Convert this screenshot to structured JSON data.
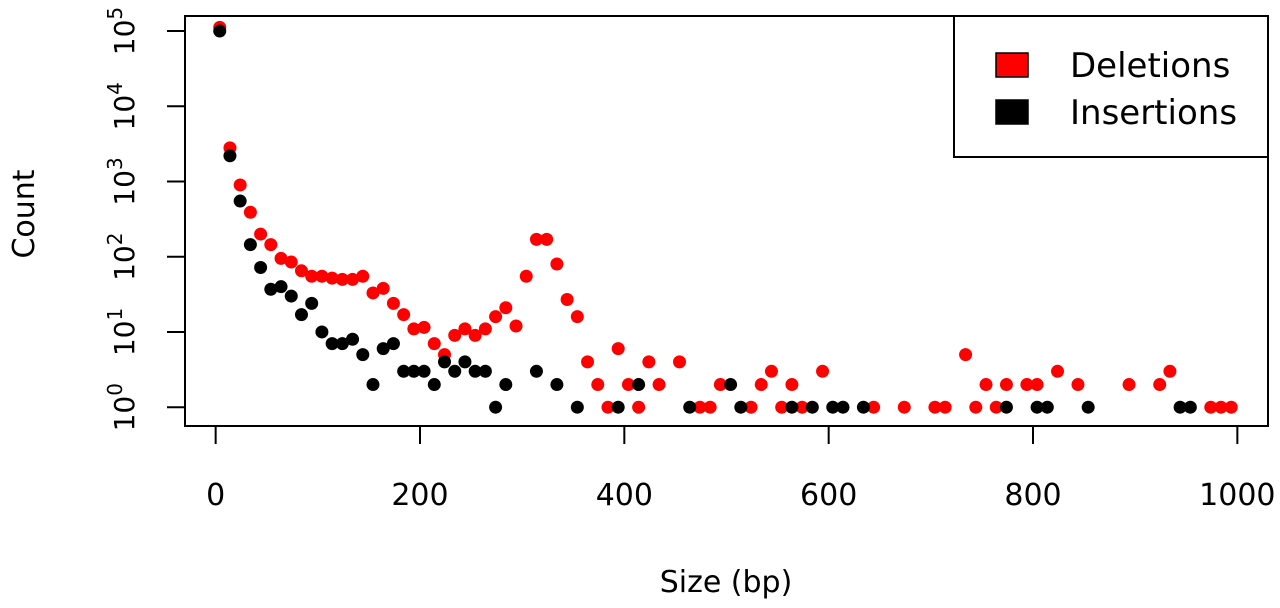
{
  "chart_data": {
    "type": "scatter",
    "title": "",
    "xlabel": "Size (bp)",
    "ylabel": "Count",
    "xlim": [
      -30,
      1030
    ],
    "ylim_log10": [
      -0.25,
      5.2
    ],
    "y_scale": "log10",
    "grid": false,
    "legend": {
      "position": "top-right"
    },
    "x_ticks": [
      0,
      200,
      400,
      600,
      800,
      1000
    ],
    "x_tick_labels": [
      "0",
      "200",
      "400",
      "600",
      "800",
      "1000"
    ],
    "y_ticks": [
      {
        "value": 1,
        "base": "10",
        "exp": "0"
      },
      {
        "value": 10,
        "base": "10",
        "exp": "1"
      },
      {
        "value": 100,
        "base": "10",
        "exp": "2"
      },
      {
        "value": 1000,
        "base": "10",
        "exp": "3"
      },
      {
        "value": 10000,
        "base": "10",
        "exp": "4"
      },
      {
        "value": 100000,
        "base": "10",
        "exp": "5"
      }
    ],
    "series": [
      {
        "name": "Deletions",
        "color": "#ff0000",
        "points": [
          [
            4,
            112000
          ],
          [
            14,
            2800
          ],
          [
            24,
            900
          ],
          [
            34,
            390
          ],
          [
            44,
            200
          ],
          [
            54,
            145
          ],
          [
            64,
            95
          ],
          [
            74,
            85
          ],
          [
            84,
            65
          ],
          [
            94,
            55
          ],
          [
            104,
            55
          ],
          [
            114,
            52
          ],
          [
            124,
            50
          ],
          [
            134,
            50
          ],
          [
            144,
            55
          ],
          [
            154,
            33
          ],
          [
            164,
            38
          ],
          [
            174,
            24
          ],
          [
            184,
            17
          ],
          [
            194,
            11
          ],
          [
            204,
            11.5
          ],
          [
            214,
            7
          ],
          [
            224,
            5
          ],
          [
            234,
            9
          ],
          [
            244,
            11
          ],
          [
            254,
            9
          ],
          [
            264,
            11
          ],
          [
            274,
            16
          ],
          [
            284,
            21
          ],
          [
            294,
            12
          ],
          [
            304,
            55
          ],
          [
            314,
            170
          ],
          [
            324,
            170
          ],
          [
            334,
            80
          ],
          [
            344,
            27
          ],
          [
            354,
            16
          ],
          [
            364,
            4
          ],
          [
            374,
            2
          ],
          [
            384,
            1
          ],
          [
            394,
            6
          ],
          [
            404,
            2
          ],
          [
            414,
            1
          ],
          [
            424,
            4
          ],
          [
            434,
            2
          ],
          [
            454,
            4
          ],
          [
            474,
            1
          ],
          [
            484,
            1
          ],
          [
            494,
            2
          ],
          [
            524,
            1
          ],
          [
            534,
            2
          ],
          [
            544,
            3
          ],
          [
            554,
            1
          ],
          [
            564,
            2
          ],
          [
            574,
            1
          ],
          [
            594,
            3
          ],
          [
            644,
            1
          ],
          [
            674,
            1
          ],
          [
            704,
            1
          ],
          [
            714,
            1
          ],
          [
            734,
            5
          ],
          [
            744,
            1
          ],
          [
            754,
            2
          ],
          [
            764,
            1
          ],
          [
            774,
            2
          ],
          [
            794,
            2
          ],
          [
            804,
            2
          ],
          [
            824,
            3
          ],
          [
            844,
            2
          ],
          [
            894,
            2
          ],
          [
            924,
            2
          ],
          [
            934,
            3
          ],
          [
            974,
            1
          ],
          [
            984,
            1
          ],
          [
            994,
            1
          ]
        ]
      },
      {
        "name": "Insertions",
        "color": "#000000",
        "points": [
          [
            4,
            100000
          ],
          [
            14,
            2200
          ],
          [
            24,
            550
          ],
          [
            34,
            145
          ],
          [
            44,
            72
          ],
          [
            54,
            37
          ],
          [
            64,
            40
          ],
          [
            74,
            30
          ],
          [
            84,
            17
          ],
          [
            94,
            24
          ],
          [
            104,
            10
          ],
          [
            114,
            7
          ],
          [
            124,
            7
          ],
          [
            134,
            8
          ],
          [
            144,
            5
          ],
          [
            154,
            2
          ],
          [
            164,
            6
          ],
          [
            174,
            7
          ],
          [
            184,
            3
          ],
          [
            194,
            3
          ],
          [
            204,
            3
          ],
          [
            214,
            2
          ],
          [
            224,
            4
          ],
          [
            234,
            3
          ],
          [
            244,
            4
          ],
          [
            254,
            3
          ],
          [
            264,
            3
          ],
          [
            274,
            1
          ],
          [
            284,
            2
          ],
          [
            314,
            3
          ],
          [
            334,
            2
          ],
          [
            354,
            1
          ],
          [
            394,
            1
          ],
          [
            414,
            2
          ],
          [
            464,
            1
          ],
          [
            504,
            2
          ],
          [
            514,
            1
          ],
          [
            564,
            1
          ],
          [
            584,
            1
          ],
          [
            604,
            1
          ],
          [
            614,
            1
          ],
          [
            634,
            1
          ],
          [
            774,
            1
          ],
          [
            804,
            1
          ],
          [
            814,
            1
          ],
          [
            854,
            1
          ],
          [
            944,
            1
          ],
          [
            954,
            1
          ]
        ]
      }
    ]
  }
}
